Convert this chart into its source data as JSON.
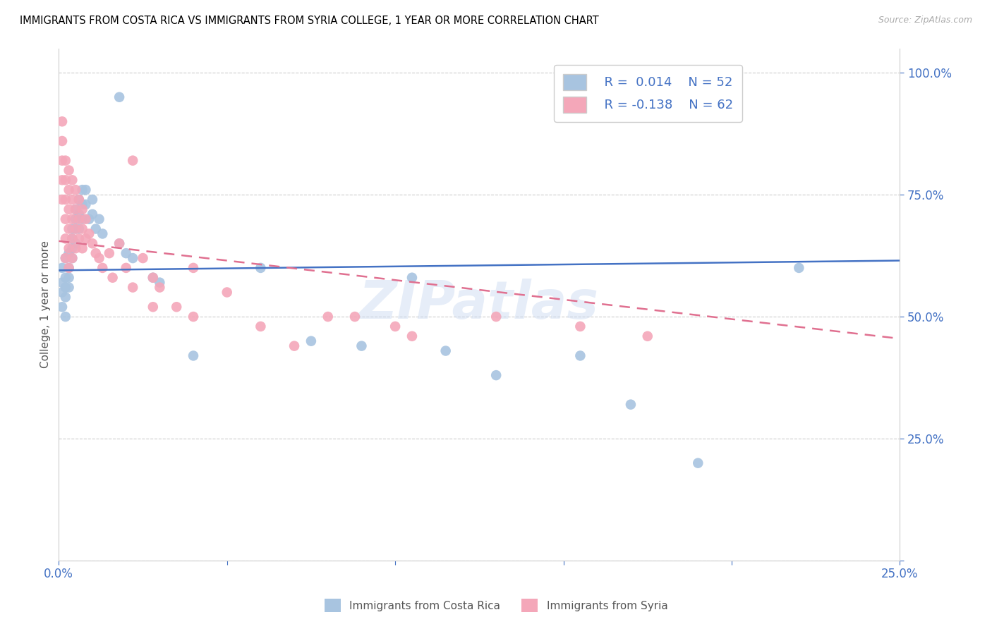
{
  "title": "IMMIGRANTS FROM COSTA RICA VS IMMIGRANTS FROM SYRIA COLLEGE, 1 YEAR OR MORE CORRELATION CHART",
  "source": "Source: ZipAtlas.com",
  "ylabel": "College, 1 year or more",
  "xlim": [
    0.0,
    0.25
  ],
  "ylim": [
    0.0,
    1.05
  ],
  "yticks": [
    0.0,
    0.25,
    0.5,
    0.75,
    1.0
  ],
  "ytick_labels": [
    "",
    "25.0%",
    "50.0%",
    "75.0%",
    "100.0%"
  ],
  "xticks": [
    0.0,
    0.05,
    0.1,
    0.15,
    0.2,
    0.25
  ],
  "xtick_labels": [
    "0.0%",
    "",
    "",
    "",
    "",
    "25.0%"
  ],
  "legend_r_cr": "0.014",
  "legend_n_cr": "52",
  "legend_r_sy": "-0.138",
  "legend_n_sy": "62",
  "color_cr": "#a8c4e0",
  "color_sy": "#f4a7b9",
  "line_color_cr": "#4472c4",
  "line_color_sy": "#e07090",
  "watermark": "ZIPatlas",
  "axis_label_color": "#4472c4",
  "cr_trend_x0": 0.0,
  "cr_trend_y0": 0.595,
  "cr_trend_x1": 0.25,
  "cr_trend_y1": 0.615,
  "sy_trend_x0": 0.0,
  "sy_trend_y0": 0.655,
  "sy_trend_x1": 0.25,
  "sy_trend_y1": 0.455,
  "costa_rica_x": [
    0.001,
    0.001,
    0.001,
    0.001,
    0.002,
    0.002,
    0.002,
    0.002,
    0.002,
    0.003,
    0.003,
    0.003,
    0.003,
    0.004,
    0.004,
    0.004,
    0.004,
    0.005,
    0.005,
    0.005,
    0.005,
    0.006,
    0.006,
    0.006,
    0.007,
    0.007,
    0.007,
    0.008,
    0.008,
    0.009,
    0.01,
    0.01,
    0.011,
    0.012,
    0.013,
    0.018,
    0.02,
    0.022,
    0.028,
    0.03,
    0.04,
    0.06,
    0.075,
    0.09,
    0.105,
    0.115,
    0.13,
    0.155,
    0.17,
    0.19,
    0.018,
    0.22
  ],
  "costa_rica_y": [
    0.57,
    0.6,
    0.55,
    0.52,
    0.62,
    0.58,
    0.56,
    0.54,
    0.5,
    0.63,
    0.6,
    0.58,
    0.56,
    0.68,
    0.66,
    0.64,
    0.62,
    0.72,
    0.7,
    0.68,
    0.65,
    0.74,
    0.71,
    0.68,
    0.76,
    0.73,
    0.7,
    0.76,
    0.73,
    0.7,
    0.74,
    0.71,
    0.68,
    0.7,
    0.67,
    0.65,
    0.63,
    0.62,
    0.58,
    0.57,
    0.42,
    0.6,
    0.45,
    0.44,
    0.58,
    0.43,
    0.38,
    0.42,
    0.32,
    0.2,
    0.95,
    0.6
  ],
  "syria_x": [
    0.001,
    0.001,
    0.001,
    0.001,
    0.001,
    0.002,
    0.002,
    0.002,
    0.002,
    0.002,
    0.002,
    0.003,
    0.003,
    0.003,
    0.003,
    0.003,
    0.003,
    0.004,
    0.004,
    0.004,
    0.004,
    0.004,
    0.005,
    0.005,
    0.005,
    0.005,
    0.006,
    0.006,
    0.006,
    0.007,
    0.007,
    0.007,
    0.008,
    0.008,
    0.009,
    0.01,
    0.011,
    0.012,
    0.013,
    0.015,
    0.016,
    0.018,
    0.02,
    0.022,
    0.025,
    0.028,
    0.03,
    0.035,
    0.04,
    0.05,
    0.06,
    0.08,
    0.1,
    0.13,
    0.155,
    0.175,
    0.105,
    0.088,
    0.04,
    0.022,
    0.07,
    0.028
  ],
  "syria_y": [
    0.9,
    0.86,
    0.82,
    0.78,
    0.74,
    0.82,
    0.78,
    0.74,
    0.7,
    0.66,
    0.62,
    0.8,
    0.76,
    0.72,
    0.68,
    0.64,
    0.6,
    0.78,
    0.74,
    0.7,
    0.66,
    0.62,
    0.76,
    0.72,
    0.68,
    0.64,
    0.74,
    0.7,
    0.66,
    0.72,
    0.68,
    0.64,
    0.7,
    0.66,
    0.67,
    0.65,
    0.63,
    0.62,
    0.6,
    0.63,
    0.58,
    0.65,
    0.6,
    0.56,
    0.62,
    0.58,
    0.56,
    0.52,
    0.5,
    0.55,
    0.48,
    0.5,
    0.48,
    0.5,
    0.48,
    0.46,
    0.46,
    0.5,
    0.6,
    0.82,
    0.44,
    0.52
  ]
}
